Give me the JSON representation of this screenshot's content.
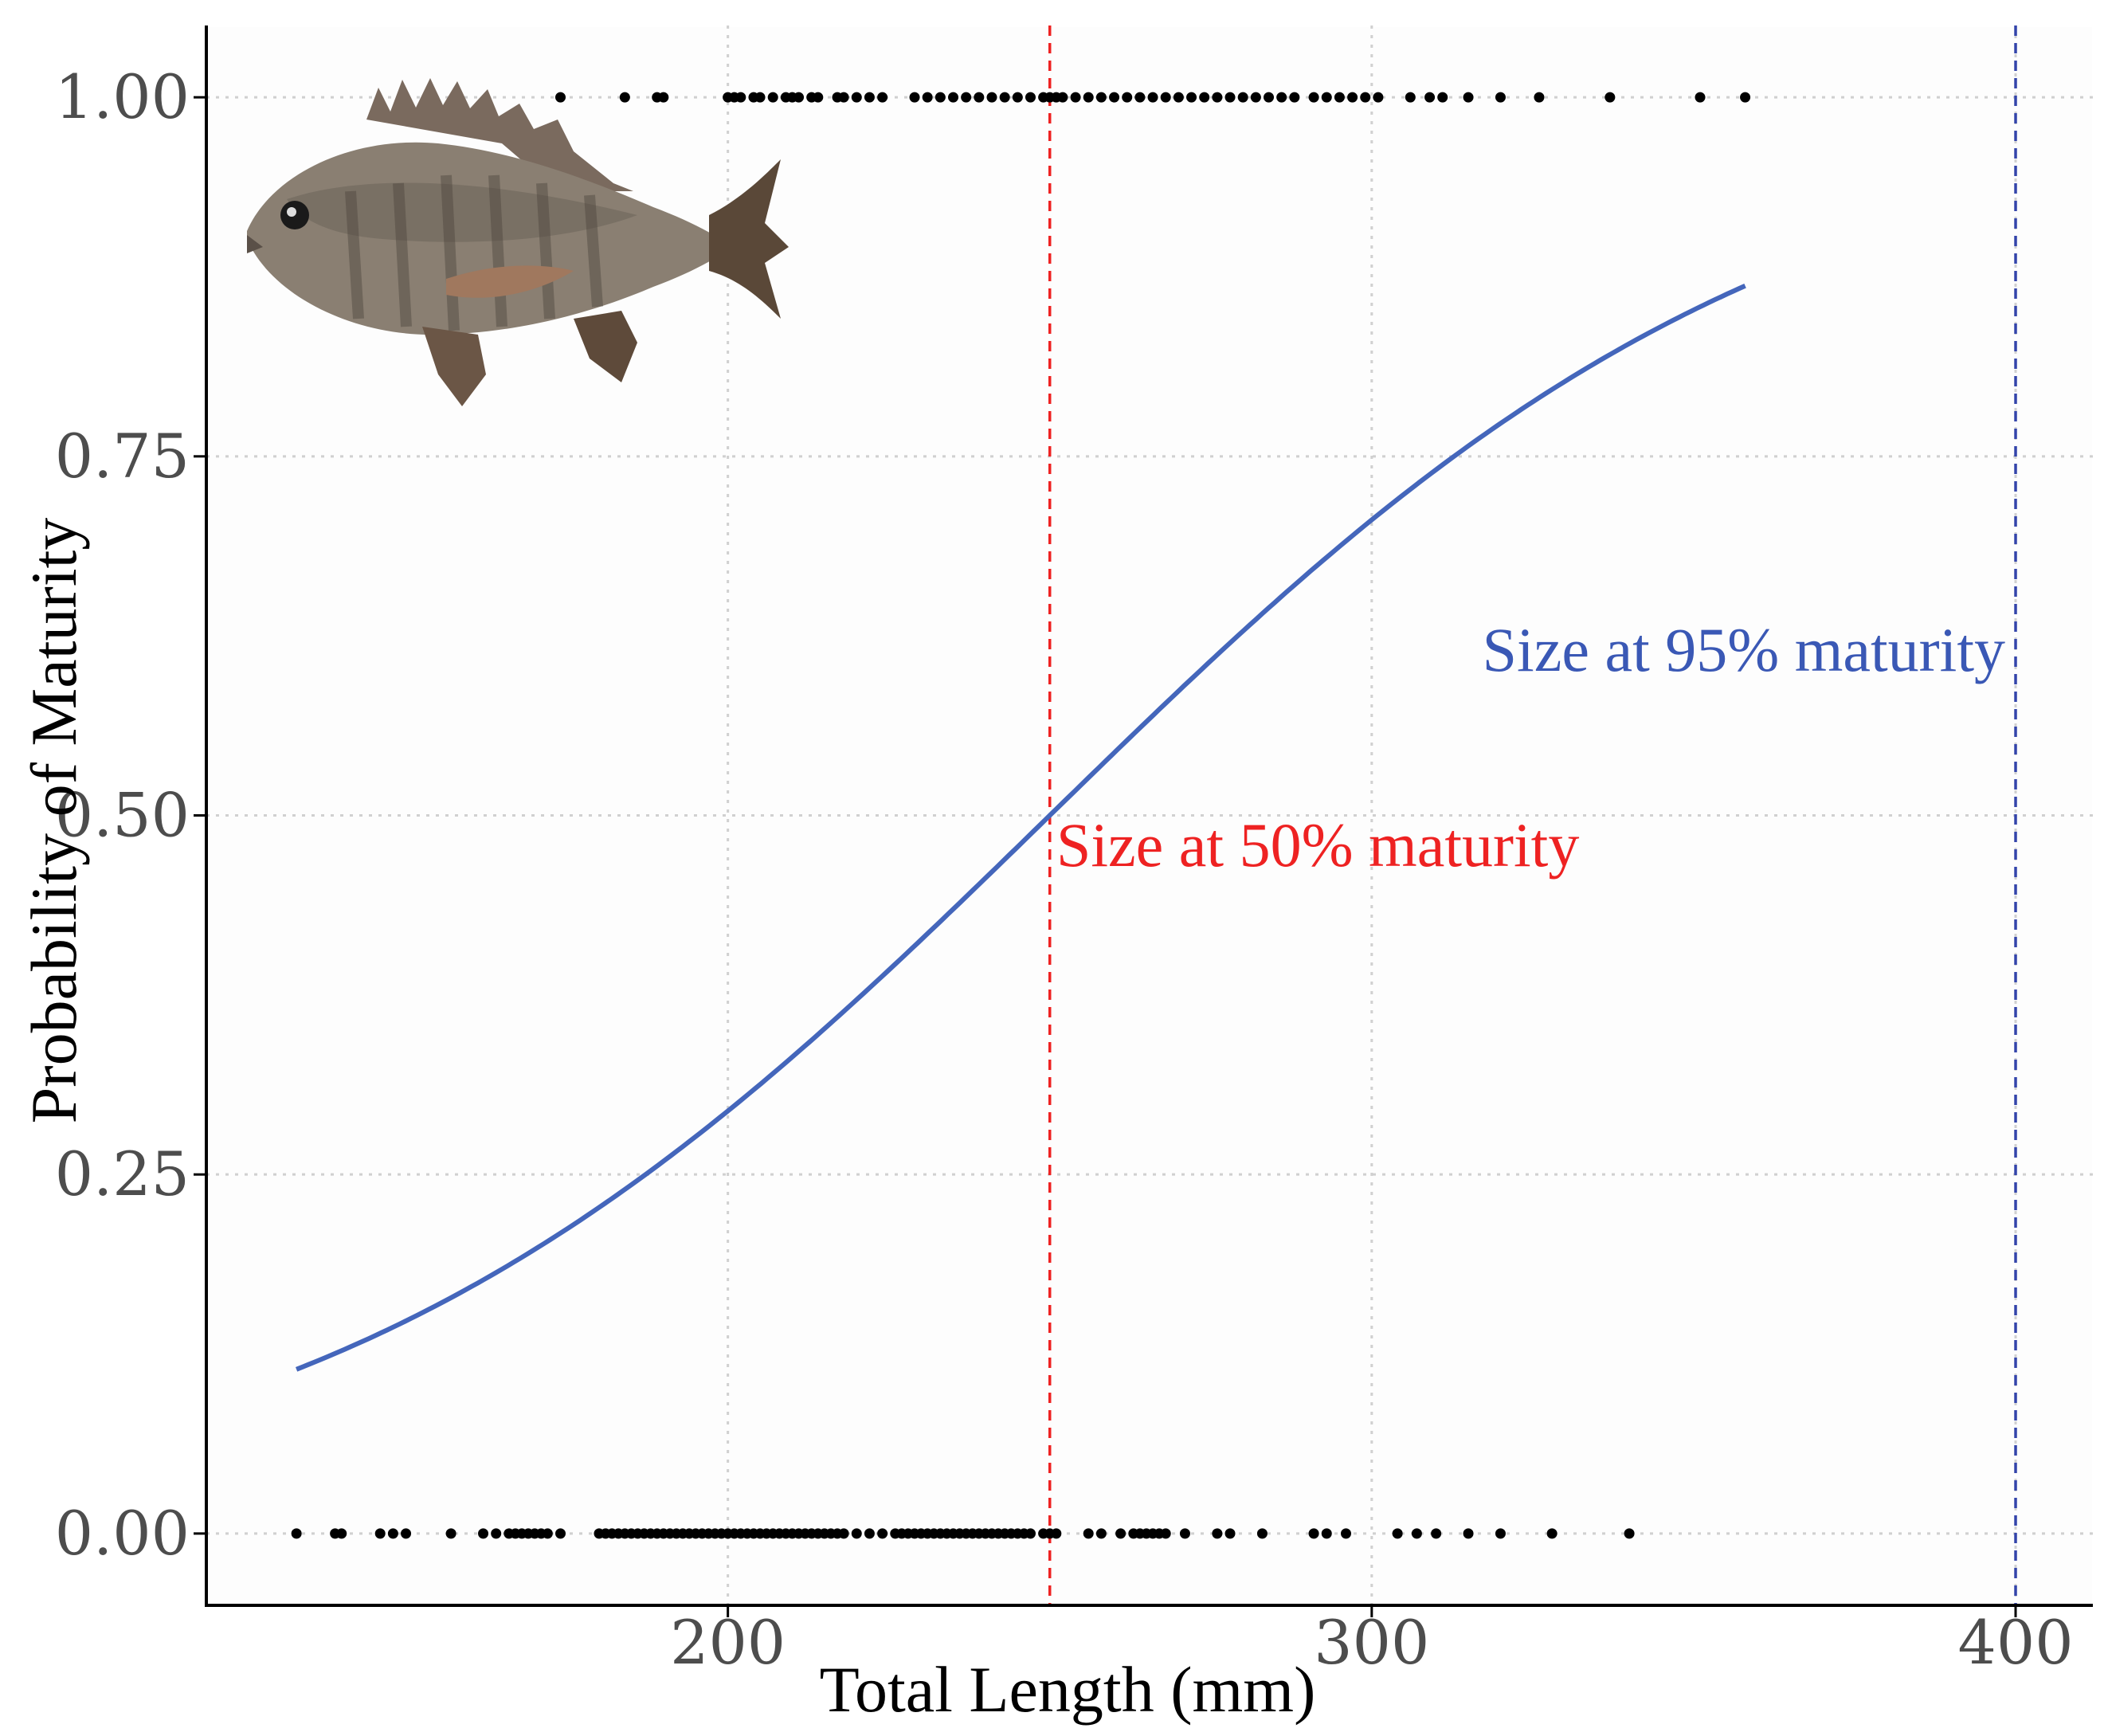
{
  "chart_data": {
    "type": "scatter",
    "xlabel": "Total Length (mm)",
    "ylabel": "Probability of Maturity",
    "xlim": [
      119,
      412
    ],
    "ylim": [
      -0.05,
      1.05
    ],
    "x_ticks": [
      200,
      300,
      400
    ],
    "x_tick_labels": [
      "200",
      "300",
      "400"
    ],
    "y_ticks": [
      0,
      0.25,
      0.5,
      0.75,
      1
    ],
    "y_tick_labels": [
      "0.00",
      "0.25",
      "0.50",
      "0.75",
      "1.00"
    ],
    "grid": true,
    "points_immature": {
      "y": 0,
      "x": [
        133,
        139,
        140,
        146,
        148,
        150,
        157,
        162,
        164,
        166,
        167,
        168,
        169,
        170,
        171,
        172,
        174,
        180,
        181,
        182,
        183,
        184,
        185,
        186,
        187,
        188,
        189,
        190,
        191,
        192,
        193,
        194,
        195,
        196,
        197,
        198,
        199,
        200,
        201,
        202,
        203,
        204,
        205,
        206,
        207,
        208,
        209,
        210,
        211,
        212,
        213,
        214,
        215,
        216,
        217,
        218,
        220,
        222,
        224,
        226,
        227,
        228,
        229,
        230,
        231,
        232,
        233,
        234,
        235,
        236,
        237,
        238,
        239,
        240,
        241,
        242,
        243,
        244,
        245,
        246,
        247,
        249,
        250,
        251,
        256,
        258,
        261,
        263,
        264,
        265,
        266,
        267,
        268,
        271,
        276,
        278,
        283,
        291,
        293,
        296,
        304,
        307,
        310,
        315,
        320,
        328,
        340
      ]
    },
    "points_mature": {
      "y": 1,
      "x": [
        174,
        184,
        189,
        190,
        200,
        201,
        202,
        204,
        205,
        207,
        209,
        210,
        211,
        213,
        214,
        217,
        218,
        220,
        222,
        224,
        229,
        231,
        233,
        235,
        237,
        239,
        241,
        243,
        245,
        247,
        249,
        250,
        251,
        252,
        254,
        256,
        258,
        260,
        262,
        264,
        266,
        268,
        270,
        272,
        274,
        276,
        278,
        280,
        282,
        284,
        286,
        288,
        291,
        293,
        295,
        297,
        299,
        301,
        306,
        309,
        311,
        315,
        320,
        326,
        337,
        351,
        358
      ]
    },
    "series": [
      {
        "type": "line",
        "logistic": {
          "L50": 250,
          "slope": 0.0175
        },
        "x_range": [
          133,
          358
        ],
        "color": "#4466bb"
      }
    ],
    "reference_lines": [
      {
        "x": 250,
        "color": "#ee2222",
        "label": "Size at 50% maturity"
      },
      {
        "x": 400,
        "color": "#3344aa",
        "label": "Size at 95% maturity"
      }
    ]
  }
}
